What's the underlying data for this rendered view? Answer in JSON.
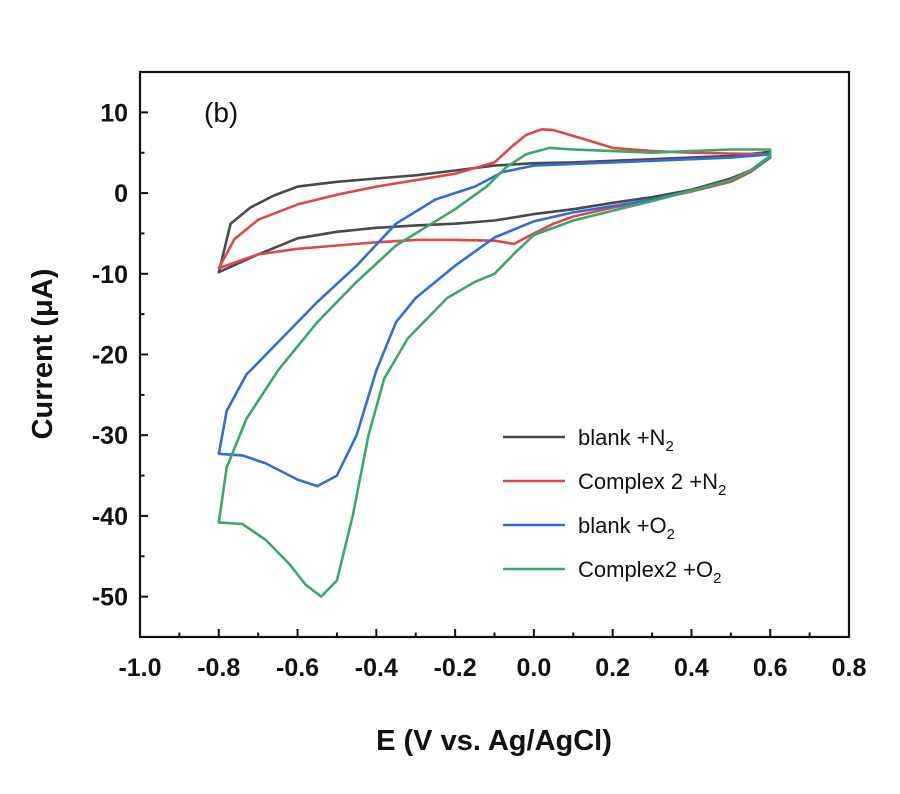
{
  "chart_data": {
    "type": "line",
    "panel_label": "(b)",
    "xlabel": "E (V vs. Ag/AgCl)",
    "ylabel": "Current (μA)",
    "xlim": [
      -1.0,
      0.8
    ],
    "ylim": [
      -55,
      15
    ],
    "x_ticks": [
      "-1.0",
      "-0.8",
      "-0.6",
      "-0.4",
      "-0.2",
      "0.0",
      "0.2",
      "0.4",
      "0.6",
      "0.8"
    ],
    "y_ticks": [
      "10",
      "0",
      "-10",
      "-20",
      "-30",
      "-40",
      "-50"
    ],
    "x_tick_values": [
      -1.0,
      -0.8,
      -0.6,
      -0.4,
      -0.2,
      0.0,
      0.2,
      0.4,
      0.6,
      0.8
    ],
    "y_tick_values": [
      10,
      0,
      -10,
      -20,
      -30,
      -40,
      -50
    ],
    "legend_position": "lower-right",
    "grid": false,
    "series": [
      {
        "name": "blank +N",
        "name_sub": "2",
        "color": "#4a4a4a",
        "points": [
          [
            -0.8,
            -9.8
          ],
          [
            -0.7,
            -7.6
          ],
          [
            -0.6,
            -5.6
          ],
          [
            -0.5,
            -4.8
          ],
          [
            -0.4,
            -4.3
          ],
          [
            -0.3,
            -4.0
          ],
          [
            -0.2,
            -3.8
          ],
          [
            -0.1,
            -3.4
          ],
          [
            0.0,
            -2.6
          ],
          [
            0.1,
            -2.0
          ],
          [
            0.2,
            -1.2
          ],
          [
            0.3,
            -0.5
          ],
          [
            0.4,
            0.4
          ],
          [
            0.5,
            1.8
          ],
          [
            0.55,
            2.8
          ],
          [
            0.6,
            4.6
          ],
          [
            0.6,
            5.1
          ],
          [
            0.5,
            4.6
          ],
          [
            0.4,
            4.4
          ],
          [
            0.3,
            4.2
          ],
          [
            0.2,
            4.0
          ],
          [
            0.1,
            3.8
          ],
          [
            0.0,
            3.7
          ],
          [
            -0.1,
            3.4
          ],
          [
            -0.2,
            2.8
          ],
          [
            -0.3,
            2.2
          ],
          [
            -0.4,
            1.8
          ],
          [
            -0.5,
            1.4
          ],
          [
            -0.6,
            0.8
          ],
          [
            -0.66,
            -0.3
          ],
          [
            -0.72,
            -1.8
          ],
          [
            -0.77,
            -3.8
          ],
          [
            -0.8,
            -9.8
          ]
        ]
      },
      {
        "name": "Complex 2 +N",
        "name_sub": "2",
        "color": "#e0474c",
        "points": [
          [
            -0.8,
            -9.3
          ],
          [
            -0.7,
            -7.6
          ],
          [
            -0.6,
            -6.9
          ],
          [
            -0.5,
            -6.5
          ],
          [
            -0.4,
            -6.1
          ],
          [
            -0.3,
            -5.8
          ],
          [
            -0.2,
            -5.8
          ],
          [
            -0.1,
            -5.9
          ],
          [
            -0.05,
            -6.3
          ],
          [
            0.0,
            -5.0
          ],
          [
            0.05,
            -3.8
          ],
          [
            0.1,
            -2.9
          ],
          [
            0.2,
            -1.8
          ],
          [
            0.3,
            -0.9
          ],
          [
            0.4,
            0.2
          ],
          [
            0.5,
            1.4
          ],
          [
            0.55,
            2.6
          ],
          [
            0.6,
            4.4
          ],
          [
            0.6,
            4.8
          ],
          [
            0.5,
            4.9
          ],
          [
            0.4,
            5.0
          ],
          [
            0.3,
            5.2
          ],
          [
            0.2,
            5.6
          ],
          [
            0.12,
            6.8
          ],
          [
            0.05,
            7.8
          ],
          [
            0.02,
            7.9
          ],
          [
            -0.02,
            7.2
          ],
          [
            -0.06,
            5.6
          ],
          [
            -0.1,
            3.8
          ],
          [
            -0.2,
            2.4
          ],
          [
            -0.3,
            1.6
          ],
          [
            -0.4,
            0.8
          ],
          [
            -0.5,
            -0.2
          ],
          [
            -0.6,
            -1.4
          ],
          [
            -0.7,
            -3.3
          ],
          [
            -0.76,
            -5.7
          ],
          [
            -0.8,
            -9.3
          ]
        ]
      },
      {
        "name": "blank +O",
        "name_sub": "2",
        "color": "#2f6fd6",
        "points": [
          [
            -0.8,
            -32.3
          ],
          [
            -0.74,
            -32.5
          ],
          [
            -0.68,
            -33.5
          ],
          [
            -0.6,
            -35.5
          ],
          [
            -0.55,
            -36.3
          ],
          [
            -0.5,
            -35.0
          ],
          [
            -0.45,
            -30.0
          ],
          [
            -0.4,
            -22.0
          ],
          [
            -0.35,
            -16.0
          ],
          [
            -0.3,
            -13.0
          ],
          [
            -0.2,
            -9.0
          ],
          [
            -0.1,
            -5.5
          ],
          [
            0.0,
            -3.5
          ],
          [
            0.1,
            -2.4
          ],
          [
            0.2,
            -1.6
          ],
          [
            0.3,
            -0.8
          ],
          [
            0.4,
            0.3
          ],
          [
            0.5,
            1.6
          ],
          [
            0.55,
            2.8
          ],
          [
            0.6,
            4.4
          ],
          [
            0.6,
            4.8
          ],
          [
            0.5,
            4.4
          ],
          [
            0.4,
            4.2
          ],
          [
            0.3,
            4.0
          ],
          [
            0.2,
            3.8
          ],
          [
            0.1,
            3.6
          ],
          [
            0.0,
            3.4
          ],
          [
            -0.08,
            2.6
          ],
          [
            -0.15,
            0.8
          ],
          [
            -0.25,
            -0.8
          ],
          [
            -0.35,
            -3.8
          ],
          [
            -0.45,
            -9.0
          ],
          [
            -0.55,
            -13.5
          ],
          [
            -0.65,
            -18.5
          ],
          [
            -0.73,
            -22.5
          ],
          [
            -0.78,
            -27.0
          ],
          [
            -0.8,
            -32.3
          ]
        ]
      },
      {
        "name": "Complex2 +O",
        "name_sub": "2",
        "color": "#3aa86a",
        "points": [
          [
            -0.8,
            -40.8
          ],
          [
            -0.74,
            -41.0
          ],
          [
            -0.68,
            -43.0
          ],
          [
            -0.62,
            -46.0
          ],
          [
            -0.58,
            -48.5
          ],
          [
            -0.54,
            -50.0
          ],
          [
            -0.5,
            -48.0
          ],
          [
            -0.46,
            -40.0
          ],
          [
            -0.42,
            -30.0
          ],
          [
            -0.38,
            -23.0
          ],
          [
            -0.32,
            -18.0
          ],
          [
            -0.22,
            -13.0
          ],
          [
            -0.15,
            -11.0
          ],
          [
            -0.1,
            -10.0
          ],
          [
            -0.05,
            -7.5
          ],
          [
            0.0,
            -5.2
          ],
          [
            0.1,
            -3.4
          ],
          [
            0.2,
            -2.2
          ],
          [
            0.3,
            -1.0
          ],
          [
            0.4,
            0.3
          ],
          [
            0.5,
            1.6
          ],
          [
            0.55,
            2.8
          ],
          [
            0.6,
            4.6
          ],
          [
            0.6,
            5.4
          ],
          [
            0.5,
            5.4
          ],
          [
            0.4,
            5.2
          ],
          [
            0.3,
            5.0
          ],
          [
            0.2,
            5.2
          ],
          [
            0.1,
            5.4
          ],
          [
            0.04,
            5.6
          ],
          [
            -0.02,
            4.8
          ],
          [
            -0.07,
            3.2
          ],
          [
            -0.12,
            0.8
          ],
          [
            -0.2,
            -2.0
          ],
          [
            -0.25,
            -3.5
          ],
          [
            -0.35,
            -6.5
          ],
          [
            -0.45,
            -11.0
          ],
          [
            -0.55,
            -16.0
          ],
          [
            -0.65,
            -22.0
          ],
          [
            -0.73,
            -28.0
          ],
          [
            -0.78,
            -34.0
          ],
          [
            -0.8,
            -40.8
          ]
        ]
      }
    ]
  }
}
